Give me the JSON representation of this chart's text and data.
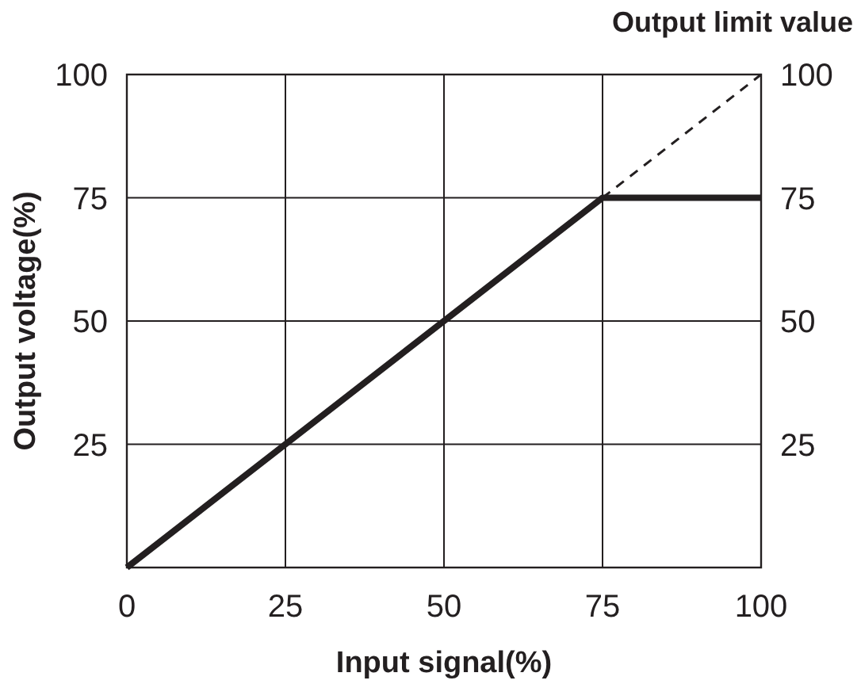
{
  "chart_data": {
    "type": "line",
    "xlabel": "Input signal(%)",
    "ylabel": "Output voltage(%)",
    "annotations": [
      {
        "text": "Output limit value",
        "x": 100,
        "y": 100
      }
    ],
    "xlim": [
      0,
      100
    ],
    "xticks": [
      0,
      25,
      50,
      75,
      100
    ],
    "ylim": [
      0,
      100
    ],
    "yticks": [
      25,
      50,
      75,
      100
    ],
    "y2lim": [
      0,
      100
    ],
    "y2ticks": [
      25,
      50,
      75,
      100
    ],
    "grid": true,
    "marker": "none",
    "series": [
      {
        "color": "#231f20",
        "x": [
          0,
          75,
          100
        ],
        "values": [
          0,
          75,
          75
        ],
        "line_style": "solid"
      },
      {
        "color": "#231f20",
        "x": [
          75,
          100
        ],
        "values": [
          75,
          100
        ],
        "line_style": "dashed"
      }
    ]
  }
}
